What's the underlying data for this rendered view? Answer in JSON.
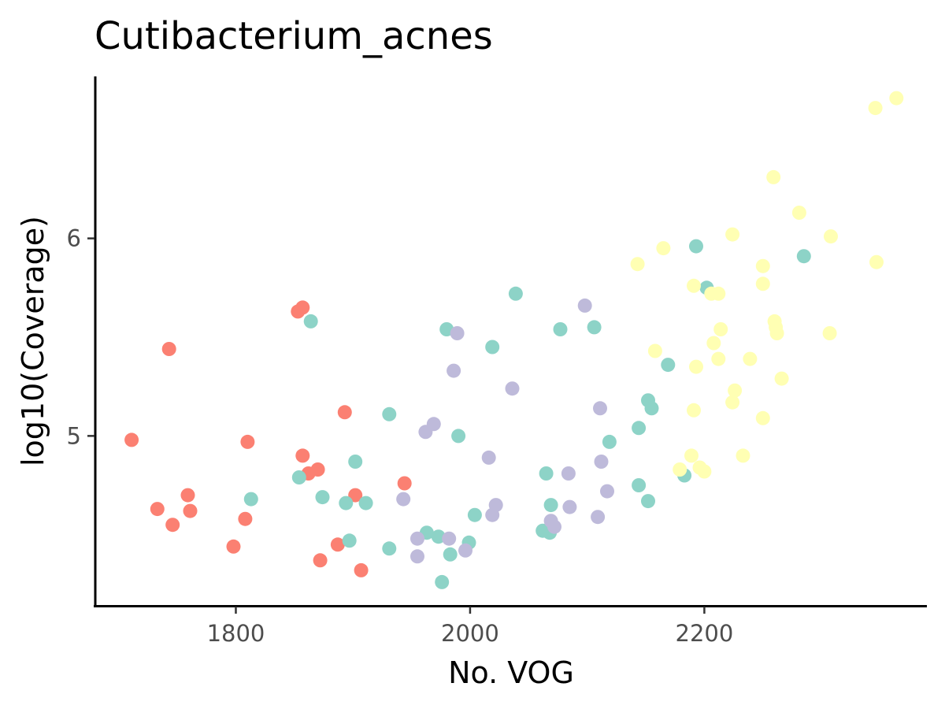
{
  "chart_data": {
    "type": "scatter",
    "title": "Cutibacterium_acnes",
    "xlabel": "No. VOG",
    "ylabel": "log10(Coverage)",
    "xlim": [
      1680,
      2390
    ],
    "ylim": [
      4.14,
      6.82
    ],
    "x_ticks": [
      1800,
      2000,
      2200
    ],
    "y_ticks": [
      5,
      6
    ],
    "grid": false,
    "legend": "none",
    "colors": {
      "salmon": "#fb8072",
      "teal": "#8dd3c7",
      "lavender": "#bebada",
      "yellow": "#ffffb3"
    },
    "series": [
      {
        "color": "#fb8072",
        "points": [
          [
            1711,
            4.98
          ],
          [
            1733,
            4.63
          ],
          [
            1743,
            5.44
          ],
          [
            1746,
            4.55
          ],
          [
            1759,
            4.7
          ],
          [
            1761,
            4.62
          ],
          [
            1798,
            4.44
          ],
          [
            1808,
            4.58
          ],
          [
            1810,
            4.97
          ],
          [
            1853,
            5.63
          ],
          [
            1857,
            5.65
          ],
          [
            1857,
            4.9
          ],
          [
            1862,
            4.81
          ],
          [
            1870,
            4.83
          ],
          [
            1872,
            4.37
          ],
          [
            1887,
            4.45
          ],
          [
            1893,
            5.12
          ],
          [
            1902,
            4.7
          ],
          [
            1907,
            4.32
          ],
          [
            1944,
            4.76
          ]
        ]
      },
      {
        "color": "#8dd3c7",
        "points": [
          [
            1813,
            4.68
          ],
          [
            1854,
            4.79
          ],
          [
            1864,
            5.58
          ],
          [
            1874,
            4.69
          ],
          [
            1894,
            4.66
          ],
          [
            1897,
            4.47
          ],
          [
            1902,
            4.87
          ],
          [
            1911,
            4.66
          ],
          [
            1931,
            5.11
          ],
          [
            1931,
            4.43
          ],
          [
            1963,
            4.51
          ],
          [
            1973,
            4.49
          ],
          [
            1976,
            4.26
          ],
          [
            1980,
            5.54
          ],
          [
            1983,
            4.4
          ],
          [
            1990,
            5.0
          ],
          [
            1999,
            4.46
          ],
          [
            2004,
            4.6
          ],
          [
            2019,
            5.45
          ],
          [
            2039,
            5.72
          ],
          [
            2062,
            4.52
          ],
          [
            2065,
            4.81
          ],
          [
            2068,
            4.51
          ],
          [
            2069,
            4.65
          ],
          [
            2077,
            5.54
          ],
          [
            2106,
            5.55
          ],
          [
            2119,
            4.97
          ],
          [
            2144,
            5.04
          ],
          [
            2144,
            4.75
          ],
          [
            2152,
            5.18
          ],
          [
            2152,
            4.67
          ],
          [
            2155,
            5.14
          ],
          [
            2169,
            5.36
          ],
          [
            2183,
            4.8
          ],
          [
            2193,
            5.96
          ],
          [
            2202,
            5.75
          ],
          [
            2285,
            5.91
          ]
        ]
      },
      {
        "color": "#bebada",
        "points": [
          [
            1943,
            4.68
          ],
          [
            1955,
            4.48
          ],
          [
            1955,
            4.39
          ],
          [
            1962,
            5.02
          ],
          [
            1969,
            5.06
          ],
          [
            1982,
            4.48
          ],
          [
            1986,
            5.33
          ],
          [
            1989,
            5.52
          ],
          [
            1996,
            4.42
          ],
          [
            2016,
            4.89
          ],
          [
            2019,
            4.6
          ],
          [
            2022,
            4.65
          ],
          [
            2036,
            5.24
          ],
          [
            2069,
            4.57
          ],
          [
            2072,
            4.54
          ],
          [
            2084,
            4.81
          ],
          [
            2085,
            4.64
          ],
          [
            2098,
            5.66
          ],
          [
            2109,
            4.59
          ],
          [
            2111,
            5.14
          ],
          [
            2112,
            4.87
          ],
          [
            2117,
            4.72
          ]
        ]
      },
      {
        "color": "#ffffb3",
        "points": [
          [
            2143,
            5.87
          ],
          [
            2158,
            5.43
          ],
          [
            2165,
            5.95
          ],
          [
            2179,
            4.83
          ],
          [
            2189,
            4.9
          ],
          [
            2191,
            5.76
          ],
          [
            2191,
            5.13
          ],
          [
            2193,
            5.35
          ],
          [
            2196,
            4.84
          ],
          [
            2200,
            4.82
          ],
          [
            2206,
            5.72
          ],
          [
            2208,
            5.47
          ],
          [
            2212,
            5.72
          ],
          [
            2212,
            5.39
          ],
          [
            2214,
            5.54
          ],
          [
            2224,
            6.02
          ],
          [
            2224,
            5.17
          ],
          [
            2226,
            5.23
          ],
          [
            2233,
            4.9
          ],
          [
            2239,
            5.39
          ],
          [
            2250,
            5.86
          ],
          [
            2250,
            5.77
          ],
          [
            2250,
            5.09
          ],
          [
            2259,
            6.31
          ],
          [
            2260,
            5.58
          ],
          [
            2261,
            5.55
          ],
          [
            2262,
            5.52
          ],
          [
            2266,
            5.29
          ],
          [
            2281,
            6.13
          ],
          [
            2308,
            6.01
          ],
          [
            2307,
            5.52
          ],
          [
            2346,
            6.66
          ],
          [
            2347,
            5.88
          ],
          [
            2364,
            6.71
          ]
        ]
      }
    ]
  }
}
